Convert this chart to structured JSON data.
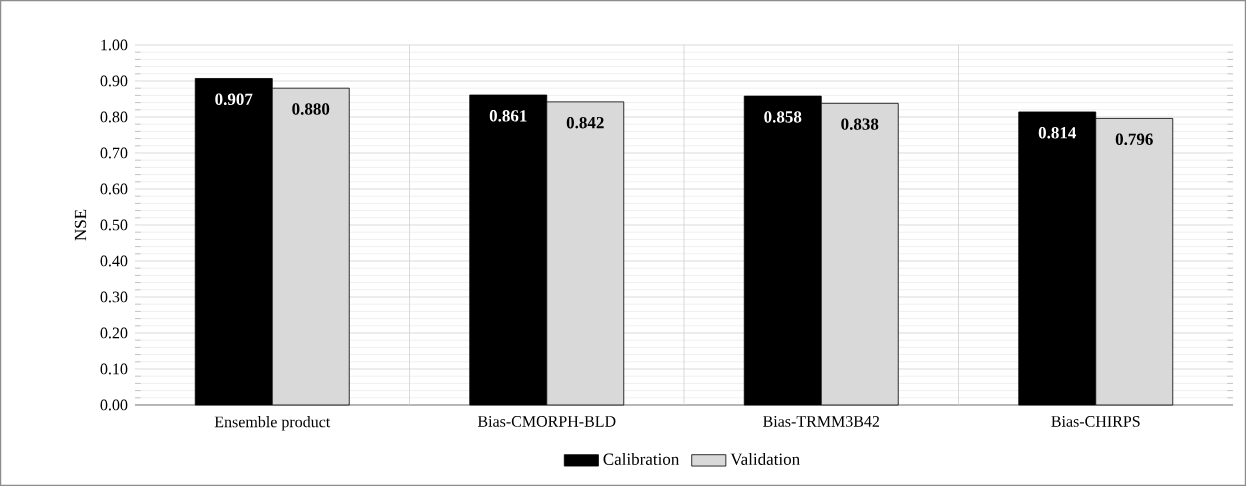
{
  "chart_data": {
    "type": "bar",
    "ylabel": "NSE",
    "categories": [
      "Ensemble product",
      "Bias-CMORPH-BLD",
      "Bias-TRMM3B42",
      "Bias-CHIRPS"
    ],
    "series": [
      {
        "name": "Calibration",
        "color": "#000000",
        "values": [
          0.907,
          0.861,
          0.858,
          0.814
        ],
        "value_labels": [
          "0.907",
          "0.861",
          "0.858",
          "0.814"
        ]
      },
      {
        "name": "Validation",
        "color": "#d9d9d9",
        "values": [
          0.88,
          0.842,
          0.838,
          0.796
        ],
        "value_labels": [
          "0.880",
          "0.842",
          "0.838",
          "0.796"
        ]
      }
    ],
    "ylim": [
      0,
      1
    ],
    "yticks": [
      {
        "value": 0,
        "label": "0.00"
      },
      {
        "value": 0.1,
        "label": "0.10"
      },
      {
        "value": 0.2,
        "label": "0.20"
      },
      {
        "value": 0.3,
        "label": "0.30"
      },
      {
        "value": 0.4,
        "label": "0.40"
      },
      {
        "value": 0.5,
        "label": "0.50"
      },
      {
        "value": 0.6,
        "label": "0.60"
      },
      {
        "value": 0.7,
        "label": "0.70"
      },
      {
        "value": 0.8,
        "label": "0.80"
      },
      {
        "value": 0.9,
        "label": "0.90"
      },
      {
        "value": 1,
        "label": "1.00"
      }
    ],
    "grid": true,
    "legend": "bottom"
  }
}
